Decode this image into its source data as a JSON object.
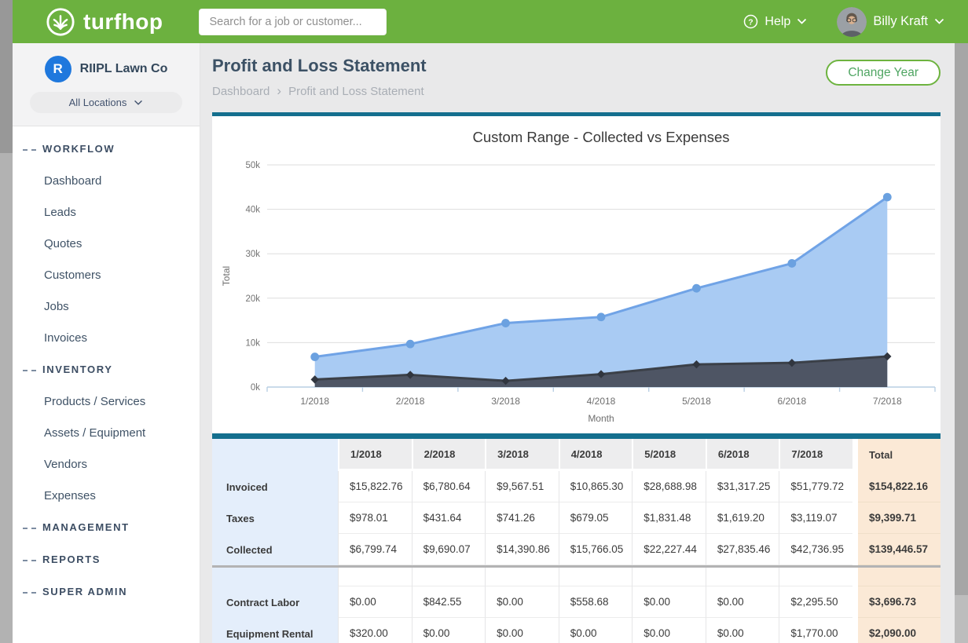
{
  "header": {
    "brand": "turfhop",
    "search_placeholder": "Search for a job or customer...",
    "help_label": "Help",
    "user_name": "Billy Kraft"
  },
  "icons": {
    "help": "?",
    "breadcrumb_chevron": "›"
  },
  "sidebar": {
    "company_initial": "R",
    "company": "RIIPL Lawn Co",
    "location_label": "All Locations",
    "sections": [
      {
        "label": "WORKFLOW",
        "items": [
          "Dashboard",
          "Leads",
          "Quotes",
          "Customers",
          "Jobs",
          "Invoices"
        ]
      },
      {
        "label": "INVENTORY",
        "items": [
          "Products / Services",
          "Assets / Equipment",
          "Vendors",
          "Expenses"
        ]
      },
      {
        "label": "MANAGEMENT",
        "items": []
      },
      {
        "label": "REPORTS",
        "items": []
      },
      {
        "label": "SUPER ADMIN",
        "items": []
      }
    ]
  },
  "page": {
    "title": "Profit and Loss Statement",
    "breadcrumb": [
      "Dashboard",
      "Profit and Loss Statement"
    ],
    "change_year_label": "Change Year"
  },
  "chart_data": {
    "type": "area",
    "title": "Custom Range - Collected vs Expenses",
    "xlabel": "Month",
    "ylabel": "Total",
    "x": [
      "1/2018",
      "2/2018",
      "3/2018",
      "4/2018",
      "5/2018",
      "6/2018",
      "7/2018"
    ],
    "ylim": [
      0,
      50000
    ],
    "yticks": [
      "0k",
      "10k",
      "20k",
      "30k",
      "40k",
      "50k"
    ],
    "grid": true,
    "legend": "none",
    "series": [
      {
        "name": "Collected",
        "marker": "circle",
        "line_color": "#70a3e6",
        "fill_color": "#a9cbf3",
        "marker_color": "#6ba1e0",
        "values": [
          6799.74,
          9690.07,
          14390.86,
          15766.05,
          22227.44,
          27835.46,
          42736.95
        ]
      },
      {
        "name": "Expenses",
        "marker": "diamond",
        "line_color": "#3b4048",
        "fill_color": "#4e5564",
        "marker_color": "#31363f",
        "values": [
          1700,
          2750,
          1400,
          2900,
          5100,
          5450,
          6900
        ]
      }
    ]
  },
  "table": {
    "corner_label": "",
    "columns": [
      "1/2018",
      "2/2018",
      "3/2018",
      "4/2018",
      "5/2018",
      "6/2018",
      "7/2018"
    ],
    "total_label": "Total",
    "rows": [
      {
        "label": "Invoiced",
        "values": [
          "$15,822.76",
          "$6,780.64",
          "$9,567.51",
          "$10,865.30",
          "$28,688.98",
          "$31,317.25",
          "$51,779.72"
        ],
        "total": "$154,822.16"
      },
      {
        "label": "Taxes",
        "values": [
          "$978.01",
          "$431.64",
          "$741.26",
          "$679.05",
          "$1,831.48",
          "$1,619.20",
          "$3,119.07"
        ],
        "total": "$9,399.71"
      },
      {
        "label": "Collected",
        "values": [
          "$6,799.74",
          "$9,690.07",
          "$14,390.86",
          "$15,766.05",
          "$22,227.44",
          "$27,835.46",
          "$42,736.95"
        ],
        "total": "$139,446.57"
      },
      {
        "divider": true
      },
      {
        "label": "Contract Labor",
        "values": [
          "$0.00",
          "$842.55",
          "$0.00",
          "$558.68",
          "$0.00",
          "$0.00",
          "$2,295.50"
        ],
        "total": "$3,696.73"
      },
      {
        "label": "Equipment Rental",
        "values": [
          "$320.00",
          "$0.00",
          "$0.00",
          "$0.00",
          "$0.00",
          "$0.00",
          "$1,770.00"
        ],
        "total": "$2,090.00"
      }
    ]
  },
  "colors": {
    "brand_green": "#6cb13f",
    "teal_accent": "#146f8e",
    "table_label_bg": "#e4eefb",
    "table_total_bg": "#fbe9d6",
    "company_logo_blue": "#1f78dd"
  }
}
